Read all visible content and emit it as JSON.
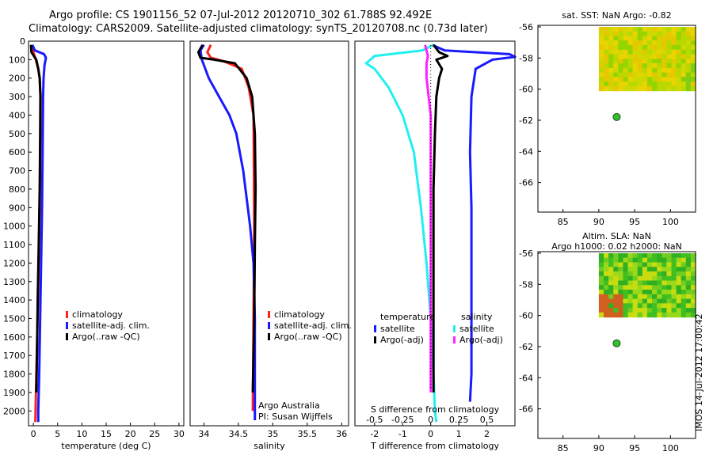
{
  "titles": {
    "line1": "Argo profile: CS 1901156_52 07-Jul-2012 20120710_302 61.788S 92.492E",
    "line2": "Climatology: CARS2009. Satellite-adjusted climatology: synTS_20120708.nc (0.73d later)"
  },
  "side_label": "IMOS 14-Jul-2012 17:00:42",
  "colors": {
    "clim": "#ff2020",
    "sat": "#1a1aff",
    "argo": "#000000",
    "cyan": "#20f0f0",
    "magenta": "#ff20ff",
    "dot": "#30c030"
  },
  "chart_data": [
    {
      "type": "line",
      "id": "temperature",
      "xlabel": "temperature (deg C)",
      "ylabel": "",
      "xlim": [
        -1,
        31
      ],
      "ylim": [
        2080,
        0
      ],
      "x_ticks": [
        0,
        5,
        10,
        15,
        20,
        25,
        30
      ],
      "y_ticks": [
        0,
        100,
        200,
        300,
        400,
        500,
        600,
        700,
        800,
        900,
        1000,
        1100,
        1200,
        1300,
        1400,
        1500,
        1600,
        1700,
        1800,
        1900,
        2000
      ],
      "legend": [
        "climatology",
        "satellite-adj. clim.",
        "Argo(..raw -QC)"
      ],
      "series": [
        {
          "name": "climatology",
          "color_key": "clim",
          "points": [
            [
              -0.3,
              20
            ],
            [
              0.0,
              60
            ],
            [
              0.5,
              100
            ],
            [
              1.0,
              150
            ],
            [
              1.3,
              200
            ],
            [
              1.5,
              300
            ],
            [
              1.45,
              500
            ],
            [
              1.35,
              800
            ],
            [
              1.15,
              1100
            ],
            [
              0.95,
              1400
            ],
            [
              0.7,
              1700
            ],
            [
              0.45,
              2000
            ],
            [
              0.4,
              2060
            ]
          ]
        },
        {
          "name": "satellite-adj. clim.",
          "color_key": "sat",
          "points": [
            [
              -0.2,
              20
            ],
            [
              0.3,
              50
            ],
            [
              2.2,
              70
            ],
            [
              2.6,
              90
            ],
            [
              2.3,
              130
            ],
            [
              2.1,
              200
            ],
            [
              2.0,
              300
            ],
            [
              1.9,
              600
            ],
            [
              1.8,
              900
            ],
            [
              1.6,
              1200
            ],
            [
              1.4,
              1500
            ],
            [
              1.2,
              1800
            ],
            [
              1.0,
              2000
            ],
            [
              1.0,
              2060
            ]
          ]
        },
        {
          "name": "Argo(..raw -QC)",
          "color_key": "argo",
          "points": [
            [
              -0.5,
              20
            ],
            [
              -0.4,
              60
            ],
            [
              0.6,
              100
            ],
            [
              1.0,
              150
            ],
            [
              1.3,
              200
            ],
            [
              1.45,
              300
            ],
            [
              1.4,
              500
            ],
            [
              1.3,
              800
            ],
            [
              1.1,
              1100
            ],
            [
              0.9,
              1400
            ],
            [
              0.75,
              1700
            ],
            [
              0.6,
              1900
            ]
          ]
        }
      ]
    },
    {
      "type": "line",
      "id": "salinity",
      "xlabel": "salinity",
      "xlim": [
        33.8,
        36.1
      ],
      "ylim": [
        2080,
        0
      ],
      "x_ticks": [
        34,
        34.5,
        35,
        35.5,
        36
      ],
      "legend": [
        "climatology",
        "satellite-adj. clim.",
        "Argo(..raw -QC)"
      ],
      "annotations": [
        "Argo Australia",
        "PI: Susan Wijffels"
      ],
      "series": [
        {
          "name": "climatology",
          "color_key": "clim",
          "points": [
            [
              34.1,
              20
            ],
            [
              34.05,
              60
            ],
            [
              34.1,
              90
            ],
            [
              34.3,
              110
            ],
            [
              34.55,
              150
            ],
            [
              34.65,
              250
            ],
            [
              34.72,
              400
            ],
            [
              34.73,
              1000
            ],
            [
              34.72,
              1500
            ],
            [
              34.71,
              2000
            ]
          ]
        },
        {
          "name": "satellite-adj. clim.",
          "color_key": "sat",
          "points": [
            [
              34.0,
              20
            ],
            [
              33.95,
              50
            ],
            [
              33.97,
              100
            ],
            [
              34.07,
              200
            ],
            [
              34.22,
              300
            ],
            [
              34.37,
              400
            ],
            [
              34.47,
              500
            ],
            [
              34.57,
              700
            ],
            [
              34.67,
              1000
            ],
            [
              34.72,
              1200
            ],
            [
              34.74,
              1500
            ],
            [
              34.74,
              2000
            ],
            [
              34.74,
              2050
            ]
          ]
        },
        {
          "name": "Argo(..raw -QC)",
          "color_key": "argo",
          "points": [
            [
              33.98,
              20
            ],
            [
              33.92,
              60
            ],
            [
              33.95,
              90
            ],
            [
              34.15,
              100
            ],
            [
              34.45,
              120
            ],
            [
              34.62,
              200
            ],
            [
              34.7,
              300
            ],
            [
              34.74,
              500
            ],
            [
              34.75,
              800
            ],
            [
              34.74,
              1100
            ],
            [
              34.73,
              1500
            ],
            [
              34.71,
              1900
            ]
          ]
        }
      ]
    },
    {
      "type": "line",
      "id": "difference",
      "xlabel": "T difference from climatology",
      "x2label": "S difference from climatology",
      "xlim": [
        -2.7,
        3.0
      ],
      "ylim": [
        2080,
        0
      ],
      "x_ticks": [
        -2,
        -1,
        0,
        1,
        2
      ],
      "x_tick_labels": [
        "-2",
        "-1",
        "0",
        "1",
        "2"
      ],
      "x2_ticks": [
        -0.5,
        -0.25,
        0,
        0.25,
        0.5
      ],
      "x2_tick_labels": [
        "-0.5",
        "-0.25",
        "0",
        "0.25",
        "0.5"
      ],
      "x2_scale": 4,
      "legend_temperature_title": "temperature",
      "legend_salinity_title": "salinity",
      "legend_temperature": [
        "satellite",
        "Argo(-adj)"
      ],
      "legend_salinity": [
        "satellite",
        "Argo(-adj)"
      ],
      "series": [
        {
          "name": "temperature satellite",
          "color_key": "sat",
          "points": [
            [
              0.05,
              20
            ],
            [
              0.5,
              50
            ],
            [
              2.8,
              70
            ],
            [
              3.0,
              85
            ],
            [
              2.2,
              100
            ],
            [
              1.6,
              150
            ],
            [
              1.45,
              300
            ],
            [
              1.4,
              600
            ],
            [
              1.45,
              900
            ],
            [
              1.45,
              1200
            ],
            [
              1.45,
              1500
            ],
            [
              1.45,
              1800
            ],
            [
              1.4,
              1950
            ]
          ]
        },
        {
          "name": "salinity satellite",
          "color_key": "cyan",
          "points": [
            [
              0.1,
              20
            ],
            [
              -0.3,
              50
            ],
            [
              -2.0,
              80
            ],
            [
              -2.3,
              120
            ],
            [
              -2.0,
              150
            ],
            [
              -1.5,
              250
            ],
            [
              -1.0,
              400
            ],
            [
              -0.6,
              600
            ],
            [
              -0.35,
              900
            ],
            [
              -0.15,
              1200
            ],
            [
              0.0,
              1500
            ],
            [
              0.1,
              1800
            ],
            [
              0.15,
              2000
            ],
            [
              0.2,
              2060
            ]
          ]
        },
        {
          "name": "salinity Argo(-adj)",
          "color_key": "magenta",
          "points": [
            [
              -0.2,
              20
            ],
            [
              -0.1,
              80
            ],
            [
              -0.15,
              120
            ],
            [
              -0.15,
              200
            ],
            [
              0.0,
              400
            ],
            [
              0.0,
              800
            ],
            [
              0.0,
              1200
            ],
            [
              0.0,
              1600
            ],
            [
              0.0,
              1900
            ]
          ]
        },
        {
          "name": "temperature Argo(-adj)",
          "color_key": "argo",
          "points": [
            [
              0.1,
              20
            ],
            [
              0.3,
              60
            ],
            [
              0.6,
              80
            ],
            [
              0.2,
              100
            ],
            [
              0.4,
              150
            ],
            [
              0.3,
              200
            ],
            [
              0.2,
              300
            ],
            [
              0.15,
              500
            ],
            [
              0.1,
              800
            ],
            [
              0.1,
              1200
            ],
            [
              0.1,
              1600
            ],
            [
              0.1,
              1900
            ]
          ]
        }
      ]
    },
    {
      "type": "heatmap",
      "id": "sst_map",
      "title": "sat. SST: NaN Argo: -0.82",
      "xlim": [
        81.5,
        103.5
      ],
      "ylim": [
        -67.9,
        -55.9
      ],
      "x_ticks": [
        85,
        90,
        95,
        100
      ],
      "y_ticks": [
        -56,
        -58,
        -60,
        -62,
        -64,
        -66
      ],
      "y_tick_labels": [
        "-56",
        "-58",
        "-60",
        "-62",
        "-64",
        "-66"
      ],
      "grid_extent": {
        "lon": [
          90,
          103.5
        ],
        "lat": [
          -60.1,
          -56
        ]
      },
      "palette": [
        "#cfd800",
        "#e8d400",
        "#b8d800",
        "#96d400",
        "#e4c800",
        "#7fce10"
      ],
      "float_position": {
        "lon": 92.49,
        "lat": -61.79
      }
    },
    {
      "type": "heatmap",
      "id": "sla_map",
      "title": "Altim. SLA: NaN",
      "subtitle": "Argo h1000: 0.02 h2000: NaN",
      "xlim": [
        81.5,
        103.5
      ],
      "ylim": [
        -67.9,
        -55.9
      ],
      "x_ticks": [
        85,
        90,
        95,
        100
      ],
      "y_ticks": [
        -56,
        -58,
        -60,
        -62,
        -64,
        -66
      ],
      "y_tick_labels": [
        "-56",
        "-58",
        "-60",
        "-62",
        "-64",
        "-66"
      ],
      "grid_extent": {
        "lon": [
          90,
          103.5
        ],
        "lat": [
          -60.1,
          -56
        ]
      },
      "palette": [
        "#3fbf20",
        "#70cc20",
        "#9ad81a",
        "#c8dc10",
        "#30b020",
        "#d06020"
      ],
      "float_position": {
        "lon": 92.49,
        "lat": -61.79
      }
    }
  ]
}
